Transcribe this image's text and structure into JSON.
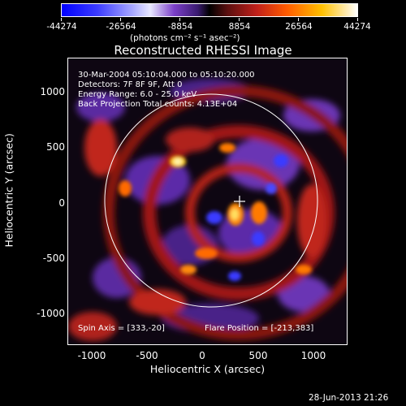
{
  "colorbar": {
    "ticks": [
      "-44274",
      "-26564",
      "-8854",
      "8854",
      "26564",
      "44274"
    ],
    "units_label": "(photons cm⁻² s⁻¹ asec⁻²)"
  },
  "plot": {
    "title": "Reconstructed RHESSI Image",
    "time_range": "30-Mar-2004 05:10:04.000 to 05:10:20.000",
    "detectors": "Detectors: 7F 8F 9F, Att 0",
    "energy_range": "Energy Range: 6.0 - 25.0 keV",
    "method_counts": "Back Projection     Total counts: 4.13E+04",
    "spin_axis": "Spin Axis = [333,-20]",
    "flare_position": "Flare Position = [-213,383]",
    "xlabel": "Heliocentric X (arcsec)",
    "ylabel": "Heliocentric Y (arcsec)",
    "x_ticks": [
      "-1000",
      "-500",
      "0",
      "500",
      "1000"
    ],
    "y_ticks": [
      "1000",
      "500",
      "0",
      "-500",
      "-1000"
    ]
  },
  "footer": {
    "timestamp": "28-Jun-2013 21:26"
  }
}
